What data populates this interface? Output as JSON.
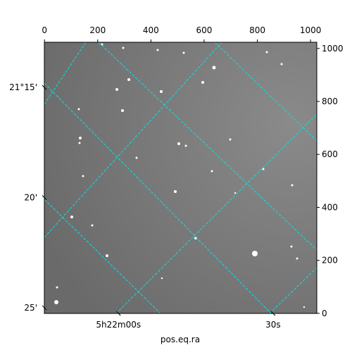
{
  "chart_data": {
    "type": "image",
    "xlabel": "pos.eq.ra",
    "xlim": [
      -0.5,
      1023.5
    ],
    "ylim": [
      -0.5,
      1023.5
    ],
    "xticks": [
      0,
      200,
      400,
      600,
      800,
      1000
    ],
    "yticks": [
      0,
      200,
      400,
      600,
      800,
      1000
    ],
    "wcs_xticks": [
      {
        "value": 278,
        "label": "5h22m00s"
      },
      {
        "value": 859,
        "label": "30s"
      }
    ],
    "wcs_yticks": [
      {
        "value": 853,
        "label": "21°15'"
      },
      {
        "value": 437,
        "label": "20'"
      },
      {
        "value": 21,
        "label": "25'"
      }
    ],
    "grid": true,
    "grid_color": "#00e5e5"
  }
}
